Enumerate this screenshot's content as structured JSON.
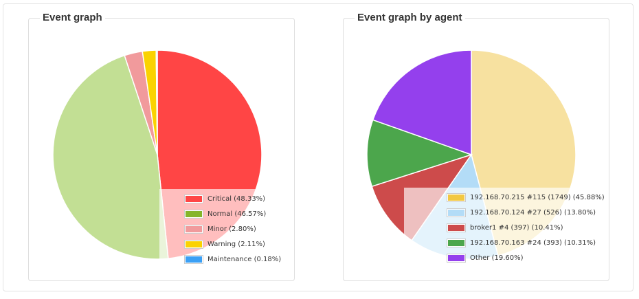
{
  "chart_data": [
    {
      "type": "pie",
      "title": "Event graph",
      "slices": [
        {
          "label": "Critical (48.33%)",
          "value": 48.33,
          "color": "#ff4545"
        },
        {
          "label": "Normal (46.57%)",
          "value": 46.57,
          "color": "#c2df94",
          "legend_color": "#84b52a"
        },
        {
          "label": "Minor (2.80%)",
          "value": 2.8,
          "color": "#f19a9c"
        },
        {
          "label": "Warning (2.11%)",
          "value": 2.11,
          "color": "#fad201"
        },
        {
          "label": "Maintenance (0.18%)",
          "value": 0.18,
          "color": "#3ba0f5"
        }
      ],
      "legend_position": "bottom-right"
    },
    {
      "type": "pie",
      "title": "Event graph by agent",
      "slices": [
        {
          "label": "192.168.70.215 #115 (1749) (45.88%)",
          "value": 45.88,
          "color": "#f7e1a0",
          "legend_color": "#f2c843"
        },
        {
          "label": "192.168.70.124 #27 (526) (13.80%)",
          "value": 13.8,
          "color": "#b3dcf7"
        },
        {
          "label": "broker1 #4 (397) (10.41%)",
          "value": 10.41,
          "color": "#cd4b4b"
        },
        {
          "label": "192.168.70.163 #24 (393) (10.31%)",
          "value": 10.31,
          "color": "#4ca64c"
        },
        {
          "label": "Other (19.60%)",
          "value": 19.6,
          "color": "#9440ed"
        }
      ],
      "legend_position": "bottom-right"
    }
  ]
}
